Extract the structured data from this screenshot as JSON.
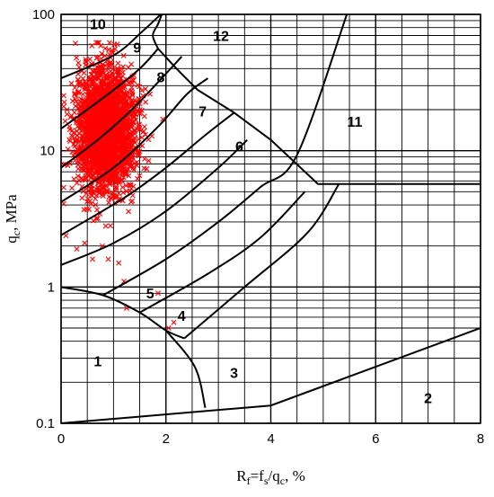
{
  "chart_data": {
    "type": "scatter",
    "title": "",
    "xlabel": "R_f=f_s/q_c, %",
    "ylabel": "q_c, MPa",
    "xlim": [
      0,
      8
    ],
    "ylim": [
      0.1,
      100
    ],
    "y_scale": "log",
    "grid": true,
    "x_ticks": [
      "0",
      "2",
      "4",
      "6",
      "8"
    ],
    "y_ticks": [
      "0.1",
      "1",
      "10",
      "100"
    ],
    "zone_labels": [
      {
        "label": "1",
        "x": 0.7,
        "y": 0.28
      },
      {
        "label": "2",
        "x": 7.0,
        "y": 0.15
      },
      {
        "label": "3",
        "x": 3.3,
        "y": 0.23
      },
      {
        "label": "4",
        "x": 2.3,
        "y": 0.6
      },
      {
        "label": "5",
        "x": 1.7,
        "y": 0.88
      },
      {
        "label": "6",
        "x": 3.4,
        "y": 10.5
      },
      {
        "label": "7",
        "x": 2.7,
        "y": 19
      },
      {
        "label": "8",
        "x": 1.9,
        "y": 34
      },
      {
        "label": "9",
        "x": 1.45,
        "y": 56
      },
      {
        "label": "10",
        "x": 0.7,
        "y": 83
      },
      {
        "label": "11",
        "x": 5.6,
        "y": 16
      },
      {
        "label": "12",
        "x": 3.05,
        "y": 68
      }
    ],
    "boundaries": [
      {
        "name": "b1",
        "points": [
          [
            0,
            1
          ],
          [
            0.8,
            0.87
          ],
          [
            1.5,
            0.65
          ],
          [
            2.0,
            0.48
          ],
          [
            2.35,
            0.42
          ]
        ]
      },
      {
        "name": "b2",
        "points": [
          [
            0,
            0.1
          ],
          [
            4.0,
            0.135
          ],
          [
            8.0,
            0.5
          ]
        ]
      },
      {
        "name": "b3",
        "points": [
          [
            2.0,
            0.48
          ],
          [
            2.55,
            0.26
          ],
          [
            2.75,
            0.13
          ]
        ]
      },
      {
        "name": "b4",
        "points": [
          [
            2.35,
            0.42
          ],
          [
            3.5,
            1.0
          ],
          [
            4.7,
            2.5
          ],
          [
            5.3,
            5.7
          ]
        ]
      },
      {
        "name": "b5",
        "points": [
          [
            1.5,
            0.65
          ],
          [
            2.8,
            1.25
          ],
          [
            3.8,
            2.3
          ],
          [
            4.65,
            5.0
          ]
        ]
      },
      {
        "name": "b6",
        "points": [
          [
            0.8,
            0.87
          ],
          [
            2.0,
            1.6
          ],
          [
            3.0,
            3.0
          ],
          [
            3.8,
            5.4
          ],
          [
            4.5,
            9.3
          ],
          [
            5.45,
            100
          ]
        ]
      },
      {
        "name": "b7",
        "points": [
          [
            0,
            1.45
          ],
          [
            1.0,
            2.1
          ],
          [
            2.0,
            3.6
          ],
          [
            3.0,
            7.5
          ],
          [
            3.55,
            12
          ]
        ]
      },
      {
        "name": "b8",
        "points": [
          [
            0,
            2.4
          ],
          [
            1.2,
            4.5
          ],
          [
            2.0,
            7.5
          ],
          [
            2.75,
            13
          ],
          [
            3.3,
            19
          ]
        ]
      },
      {
        "name": "b9",
        "points": [
          [
            0,
            4.2
          ],
          [
            1.0,
            7.5
          ],
          [
            1.85,
            15
          ],
          [
            2.4,
            26
          ],
          [
            2.8,
            34
          ]
        ]
      },
      {
        "name": "b10",
        "points": [
          [
            0,
            7.5
          ],
          [
            0.7,
            12
          ],
          [
            1.35,
            20
          ],
          [
            1.95,
            35
          ],
          [
            2.3,
            49
          ]
        ]
      },
      {
        "name": "b11",
        "points": [
          [
            0,
            14.5
          ],
          [
            0.9,
            26
          ],
          [
            1.5,
            40
          ],
          [
            1.85,
            56
          ]
        ]
      },
      {
        "name": "b12",
        "points": [
          [
            0,
            34
          ],
          [
            1.0,
            50
          ],
          [
            1.55,
            75
          ],
          [
            1.9,
            100
          ]
        ]
      },
      {
        "name": "b13",
        "points": [
          [
            1.85,
            56
          ],
          [
            1.75,
            70
          ],
          [
            1.85,
            85
          ],
          [
            1.92,
            100
          ]
        ]
      },
      {
        "name": "b14",
        "points": [
          [
            1.85,
            56
          ],
          [
            2.2,
            40
          ],
          [
            2.6,
            28
          ],
          [
            3.3,
            19
          ],
          [
            4.0,
            12
          ],
          [
            4.9,
            5.7
          ],
          [
            8,
            5.7
          ]
        ]
      }
    ],
    "series": [
      {
        "marker": "x",
        "color": "#ff0000",
        "cloud": {
          "x_center": 0.85,
          "x_spread": 0.28,
          "y_center": 14,
          "y_spread_log": 0.22,
          "count": 2600
        }
      },
      {
        "marker": "x",
        "color": "#ff0000",
        "values": [
          [
            1.2,
            1.1
          ],
          [
            1.25,
            0.7
          ],
          [
            1.85,
            0.9
          ],
          [
            2.05,
            0.5
          ],
          [
            2.15,
            0.55
          ],
          [
            0.6,
            1.6
          ],
          [
            0.9,
            1.6
          ],
          [
            1.1,
            1.5
          ],
          [
            0.3,
            1.9
          ],
          [
            0.45,
            2.1
          ]
        ]
      }
    ]
  }
}
